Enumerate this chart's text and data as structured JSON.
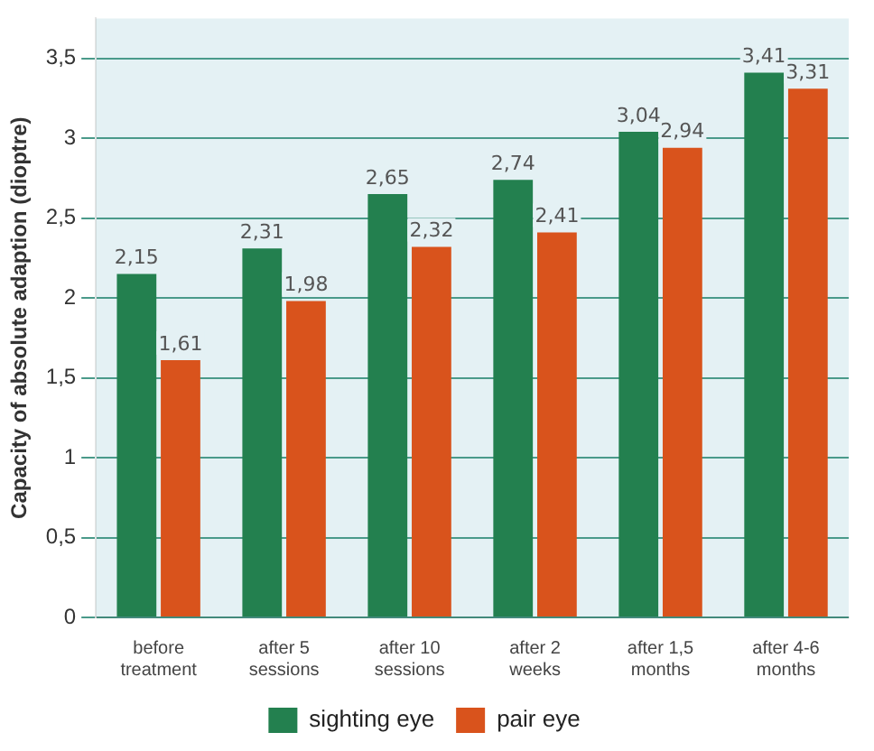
{
  "chart_data": {
    "type": "bar",
    "ylabel": "Capacity of absolute adaption (dioptre)",
    "categories": [
      "before treatment",
      "after 5 sessions",
      "after 10 sessions",
      "after 2 weeks",
      "after 1,5 months",
      "after 4-6 months"
    ],
    "series": [
      {
        "name": "sighting eye",
        "color": "#23804f",
        "values": [
          2.15,
          2.31,
          2.65,
          2.74,
          3.04,
          3.41
        ],
        "value_labels": [
          "2,15",
          "2,31",
          "2,65",
          "2,74",
          "3,04",
          "3,41"
        ]
      },
      {
        "name": "pair eye",
        "color": "#d9531c",
        "values": [
          1.61,
          1.98,
          2.32,
          2.41,
          2.94,
          3.31
        ],
        "value_labels": [
          "1,61",
          "1,98",
          "2,32",
          "2,41",
          "2,94",
          "3,31"
        ]
      }
    ],
    "ylim": [
      0,
      3.75
    ],
    "yticks": [
      0,
      {
        "value": 0.5,
        "label": "0,5"
      },
      1,
      {
        "value": 1.5,
        "label": "1,5"
      },
      2,
      {
        "value": 2.5,
        "label": "2,5"
      },
      3,
      {
        "value": 3.5,
        "label": "3,5"
      }
    ],
    "grid": "y",
    "legend": "bottom"
  }
}
